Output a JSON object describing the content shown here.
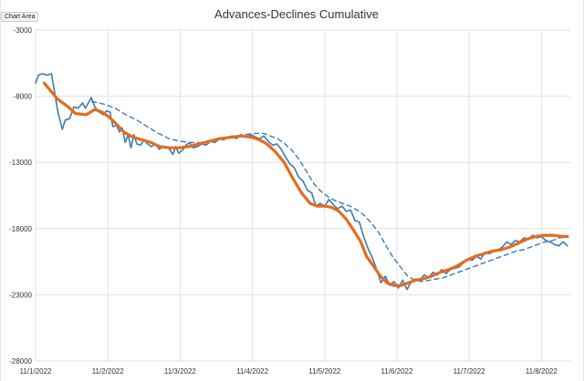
{
  "tooltip": {
    "label": "Chart Area"
  },
  "colors": {
    "series_primary": "#3d7ab8",
    "series_ma": "#e46c1c",
    "grid": "#e2e2e2"
  },
  "chart_data": {
    "type": "line",
    "title": "Advances-Declines Cumulative",
    "xlabel": "",
    "ylabel": "",
    "ylim": [
      -28000,
      -3000
    ],
    "yticks": [
      -3000,
      -8000,
      -13000,
      -18000,
      -23000,
      -28000
    ],
    "ytick_labels": [
      "-3000",
      "-8000",
      "-13000",
      "-18000",
      "-23000",
      "-28000"
    ],
    "xlim": [
      0,
      7.4
    ],
    "xticks": [
      0,
      1,
      2,
      3,
      4,
      5,
      6,
      7
    ],
    "xtick_labels": [
      "11/1/2022",
      "11/2/2022",
      "11/3/2022",
      "11/4/2022",
      "11/5/2022",
      "11/6/2022",
      "11/7/2022",
      "11/8/2022"
    ],
    "grid": true,
    "legend": "none",
    "series": [
      {
        "style": "solid-thin",
        "points": [
          [
            0.0,
            -7000
          ],
          [
            0.04,
            -6400
          ],
          [
            0.09,
            -6300
          ],
          [
            0.16,
            -6400
          ],
          [
            0.22,
            -6300
          ],
          [
            0.25,
            -7300
          ],
          [
            0.31,
            -9200
          ],
          [
            0.37,
            -10500
          ],
          [
            0.41,
            -9800
          ],
          [
            0.47,
            -9700
          ],
          [
            0.53,
            -8800
          ],
          [
            0.59,
            -8900
          ],
          [
            0.65,
            -8500
          ],
          [
            0.69,
            -8900
          ],
          [
            0.77,
            -8100
          ],
          [
            0.82,
            -8800
          ],
          [
            0.88,
            -9200
          ],
          [
            0.94,
            -9400
          ],
          [
            0.98,
            -9100
          ],
          [
            1.03,
            -9200
          ],
          [
            1.07,
            -10300
          ],
          [
            1.12,
            -10200
          ],
          [
            1.16,
            -10700
          ],
          [
            1.2,
            -10400
          ],
          [
            1.24,
            -11500
          ],
          [
            1.28,
            -10900
          ],
          [
            1.32,
            -11900
          ],
          [
            1.36,
            -10900
          ],
          [
            1.4,
            -11600
          ],
          [
            1.45,
            -11700
          ],
          [
            1.5,
            -11300
          ],
          [
            1.55,
            -11600
          ],
          [
            1.6,
            -11800
          ],
          [
            1.66,
            -11600
          ],
          [
            1.71,
            -12000
          ],
          [
            1.78,
            -11800
          ],
          [
            1.84,
            -11900
          ],
          [
            1.9,
            -12400
          ],
          [
            1.94,
            -11800
          ],
          [
            1.98,
            -12300
          ],
          [
            2.03,
            -12100
          ],
          [
            2.08,
            -11700
          ],
          [
            2.13,
            -11500
          ],
          [
            2.18,
            -11900
          ],
          [
            2.24,
            -11800
          ],
          [
            2.3,
            -11600
          ],
          [
            2.36,
            -11700
          ],
          [
            2.42,
            -11400
          ],
          [
            2.48,
            -11500
          ],
          [
            2.55,
            -11200
          ],
          [
            2.6,
            -11300
          ],
          [
            2.66,
            -11100
          ],
          [
            2.72,
            -11000
          ],
          [
            2.78,
            -11200
          ],
          [
            2.84,
            -10900
          ],
          [
            2.91,
            -11100
          ],
          [
            2.98,
            -10900
          ],
          [
            3.05,
            -11100
          ],
          [
            3.1,
            -11200
          ],
          [
            3.16,
            -11000
          ],
          [
            3.22,
            -11400
          ],
          [
            3.28,
            -11700
          ],
          [
            3.34,
            -11600
          ],
          [
            3.4,
            -12000
          ],
          [
            3.46,
            -12600
          ],
          [
            3.52,
            -13100
          ],
          [
            3.58,
            -13400
          ],
          [
            3.64,
            -14100
          ],
          [
            3.7,
            -14400
          ],
          [
            3.76,
            -15100
          ],
          [
            3.82,
            -15300
          ],
          [
            3.88,
            -16300
          ],
          [
            3.94,
            -16100
          ],
          [
            4.0,
            -16300
          ],
          [
            4.06,
            -15800
          ],
          [
            4.12,
            -16200
          ],
          [
            4.18,
            -16500
          ],
          [
            4.24,
            -16300
          ],
          [
            4.3,
            -16700
          ],
          [
            4.36,
            -16600
          ],
          [
            4.42,
            -17400
          ],
          [
            4.48,
            -17500
          ],
          [
            4.54,
            -18600
          ],
          [
            4.6,
            -19500
          ],
          [
            4.66,
            -20200
          ],
          [
            4.72,
            -21100
          ],
          [
            4.78,
            -22100
          ],
          [
            4.84,
            -21600
          ],
          [
            4.9,
            -22300
          ],
          [
            4.96,
            -22000
          ],
          [
            5.02,
            -22500
          ],
          [
            5.08,
            -21900
          ],
          [
            5.14,
            -22600
          ],
          [
            5.2,
            -22000
          ],
          [
            5.26,
            -21800
          ],
          [
            5.32,
            -21900
          ],
          [
            5.38,
            -21500
          ],
          [
            5.44,
            -21700
          ],
          [
            5.5,
            -21300
          ],
          [
            5.56,
            -21500
          ],
          [
            5.62,
            -21100
          ],
          [
            5.68,
            -21400
          ],
          [
            5.74,
            -21100
          ],
          [
            5.8,
            -21000
          ],
          [
            5.86,
            -20900
          ],
          [
            5.92,
            -20600
          ],
          [
            5.98,
            -20300
          ],
          [
            6.04,
            -20400
          ],
          [
            6.1,
            -20100
          ],
          [
            6.16,
            -20300
          ],
          [
            6.22,
            -19800
          ],
          [
            6.28,
            -19900
          ],
          [
            6.34,
            -19700
          ],
          [
            6.4,
            -19600
          ],
          [
            6.46,
            -19400
          ],
          [
            6.52,
            -19000
          ],
          [
            6.58,
            -19200
          ],
          [
            6.64,
            -18900
          ],
          [
            6.7,
            -19000
          ],
          [
            6.76,
            -18700
          ],
          [
            6.82,
            -18800
          ],
          [
            6.88,
            -18500
          ],
          [
            6.94,
            -18700
          ],
          [
            7.0,
            -18600
          ],
          [
            7.06,
            -18900
          ],
          [
            7.12,
            -19000
          ],
          [
            7.18,
            -19200
          ],
          [
            7.24,
            -19300
          ],
          [
            7.3,
            -19000
          ],
          [
            7.36,
            -19300
          ]
        ]
      },
      {
        "style": "solid-thick",
        "points": [
          [
            0.12,
            -7000
          ],
          [
            0.3,
            -8200
          ],
          [
            0.45,
            -8800
          ],
          [
            0.55,
            -9300
          ],
          [
            0.7,
            -9400
          ],
          [
            0.82,
            -9000
          ],
          [
            0.92,
            -9200
          ],
          [
            1.0,
            -9500
          ],
          [
            1.1,
            -10000
          ],
          [
            1.22,
            -10700
          ],
          [
            1.35,
            -11100
          ],
          [
            1.48,
            -11300
          ],
          [
            1.6,
            -11500
          ],
          [
            1.72,
            -11800
          ],
          [
            1.85,
            -11900
          ],
          [
            1.98,
            -11900
          ],
          [
            2.12,
            -11800
          ],
          [
            2.26,
            -11600
          ],
          [
            2.4,
            -11400
          ],
          [
            2.55,
            -11200
          ],
          [
            2.7,
            -11100
          ],
          [
            2.85,
            -11000
          ],
          [
            3.0,
            -11100
          ],
          [
            3.1,
            -11300
          ],
          [
            3.2,
            -11600
          ],
          [
            3.32,
            -12200
          ],
          [
            3.44,
            -13000
          ],
          [
            3.56,
            -14200
          ],
          [
            3.68,
            -15300
          ],
          [
            3.8,
            -16100
          ],
          [
            3.9,
            -16300
          ],
          [
            4.0,
            -16300
          ],
          [
            4.1,
            -16400
          ],
          [
            4.2,
            -16700
          ],
          [
            4.3,
            -17300
          ],
          [
            4.4,
            -18100
          ],
          [
            4.5,
            -19000
          ],
          [
            4.58,
            -20100
          ],
          [
            4.66,
            -20700
          ],
          [
            4.76,
            -21500
          ],
          [
            4.86,
            -22100
          ],
          [
            4.96,
            -22300
          ],
          [
            5.06,
            -22300
          ],
          [
            5.16,
            -22100
          ],
          [
            5.26,
            -21900
          ],
          [
            5.36,
            -21800
          ],
          [
            5.48,
            -21600
          ],
          [
            5.6,
            -21300
          ],
          [
            5.72,
            -21100
          ],
          [
            5.84,
            -20800
          ],
          [
            5.96,
            -20400
          ],
          [
            6.08,
            -20100
          ],
          [
            6.2,
            -19900
          ],
          [
            6.32,
            -19700
          ],
          [
            6.44,
            -19600
          ],
          [
            6.56,
            -19400
          ],
          [
            6.68,
            -19100
          ],
          [
            6.8,
            -18800
          ],
          [
            6.92,
            -18600
          ],
          [
            7.04,
            -18500
          ],
          [
            7.16,
            -18500
          ],
          [
            7.28,
            -18600
          ],
          [
            7.36,
            -18600
          ]
        ]
      },
      {
        "style": "dashed",
        "points": [
          [
            0.78,
            -8400
          ],
          [
            0.95,
            -8600
          ],
          [
            1.1,
            -8900
          ],
          [
            1.25,
            -9400
          ],
          [
            1.4,
            -9800
          ],
          [
            1.55,
            -10300
          ],
          [
            1.7,
            -10800
          ],
          [
            1.85,
            -11200
          ],
          [
            2.0,
            -11400
          ],
          [
            2.15,
            -11500
          ],
          [
            2.3,
            -11500
          ],
          [
            2.45,
            -11400
          ],
          [
            2.6,
            -11200
          ],
          [
            2.75,
            -11000
          ],
          [
            2.9,
            -10900
          ],
          [
            3.05,
            -10800
          ],
          [
            3.15,
            -10800
          ],
          [
            3.25,
            -11000
          ],
          [
            3.35,
            -11200
          ],
          [
            3.45,
            -11600
          ],
          [
            3.55,
            -12100
          ],
          [
            3.65,
            -12800
          ],
          [
            3.75,
            -13700
          ],
          [
            3.85,
            -14600
          ],
          [
            3.95,
            -15200
          ],
          [
            4.05,
            -15600
          ],
          [
            4.15,
            -15900
          ],
          [
            4.25,
            -16100
          ],
          [
            4.35,
            -16300
          ],
          [
            4.45,
            -16600
          ],
          [
            4.55,
            -17000
          ],
          [
            4.65,
            -17600
          ],
          [
            4.75,
            -18300
          ],
          [
            4.85,
            -19300
          ],
          [
            4.95,
            -20200
          ],
          [
            5.05,
            -20900
          ],
          [
            5.15,
            -21600
          ],
          [
            5.25,
            -21900
          ],
          [
            5.35,
            -22000
          ],
          [
            5.45,
            -21900
          ],
          [
            5.55,
            -21800
          ],
          [
            5.65,
            -21700
          ],
          [
            5.75,
            -21500
          ],
          [
            5.85,
            -21300
          ],
          [
            5.95,
            -21100
          ],
          [
            6.05,
            -20900
          ],
          [
            6.15,
            -20700
          ],
          [
            6.25,
            -20500
          ],
          [
            6.35,
            -20300
          ],
          [
            6.45,
            -20100
          ],
          [
            6.55,
            -19900
          ],
          [
            6.65,
            -19700
          ],
          [
            6.75,
            -19600
          ],
          [
            6.85,
            -19400
          ],
          [
            6.95,
            -19200
          ],
          [
            7.05,
            -19000
          ],
          [
            7.15,
            -18900
          ],
          [
            7.25,
            -18700
          ],
          [
            7.36,
            -18600
          ]
        ]
      }
    ]
  }
}
